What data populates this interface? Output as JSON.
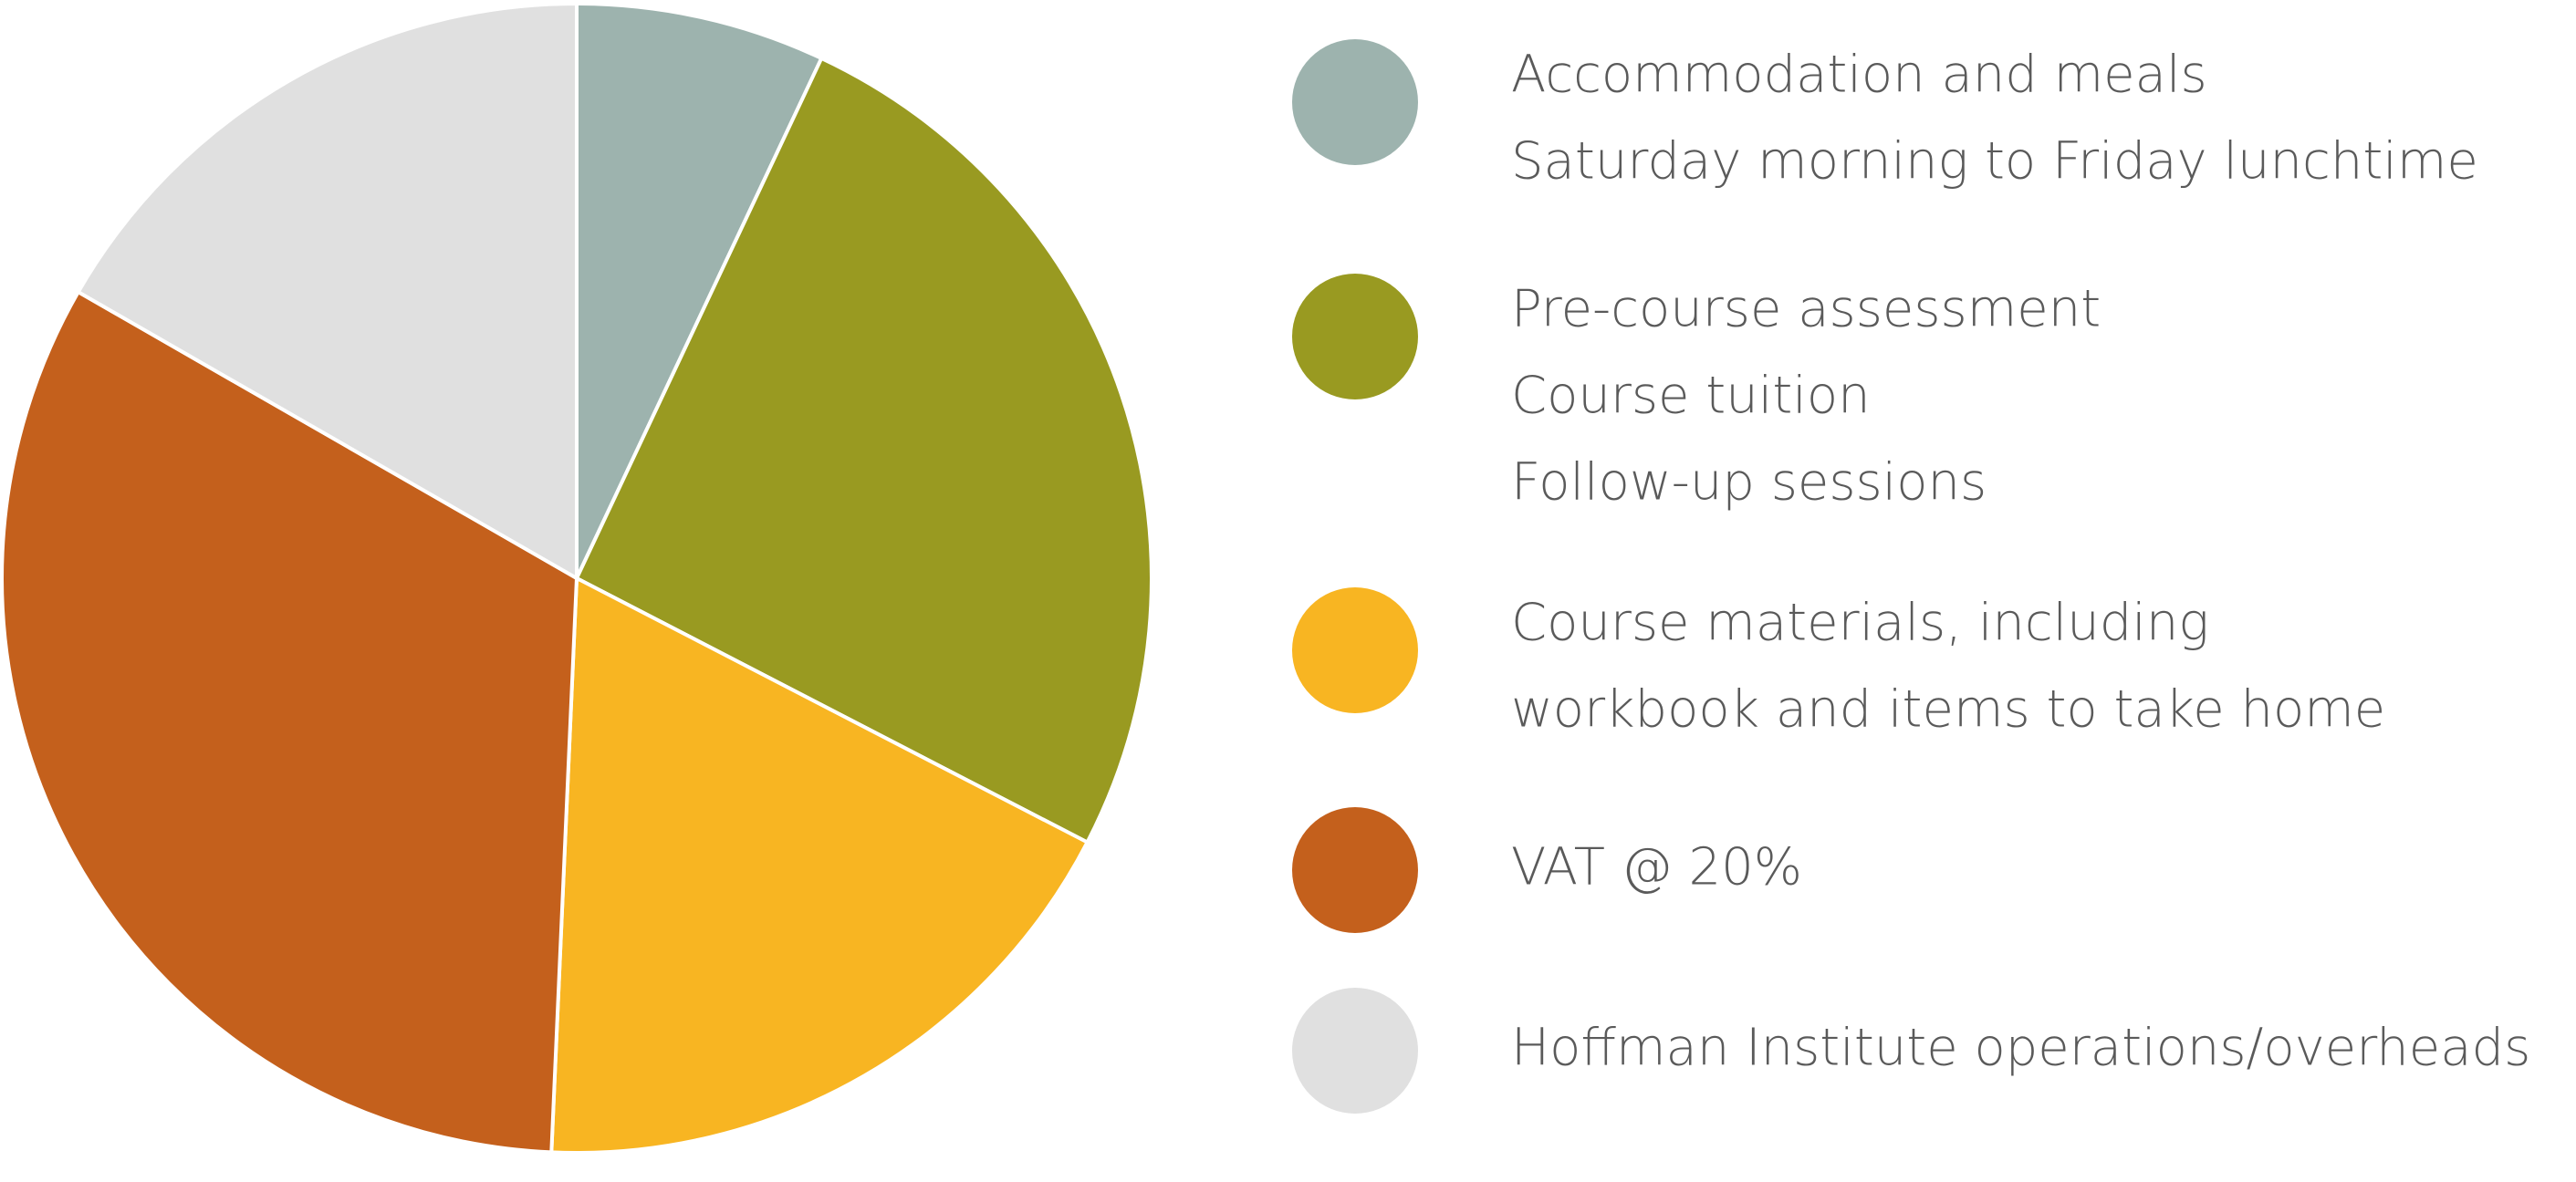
{
  "chart_data": {
    "type": "pie",
    "labels": [
      [
        "Accommodation and meals",
        "Saturday morning to Friday lunchtime"
      ],
      [
        "Pre-course assessment",
        "Course tuition",
        "Follow-up sessions"
      ],
      [
        "Course materials, including",
        "workbook and items to take home"
      ],
      [
        "VAT @ 20%"
      ],
      [
        "Hoffman Institute operations/overheads"
      ]
    ],
    "values": [
      7,
      25.6,
      18.1,
      32.6,
      16.7
    ],
    "colors": [
      "#9db3ae",
      "#999a21",
      "#f8b522",
      "#c4601c",
      "#e0e0e0"
    ]
  }
}
